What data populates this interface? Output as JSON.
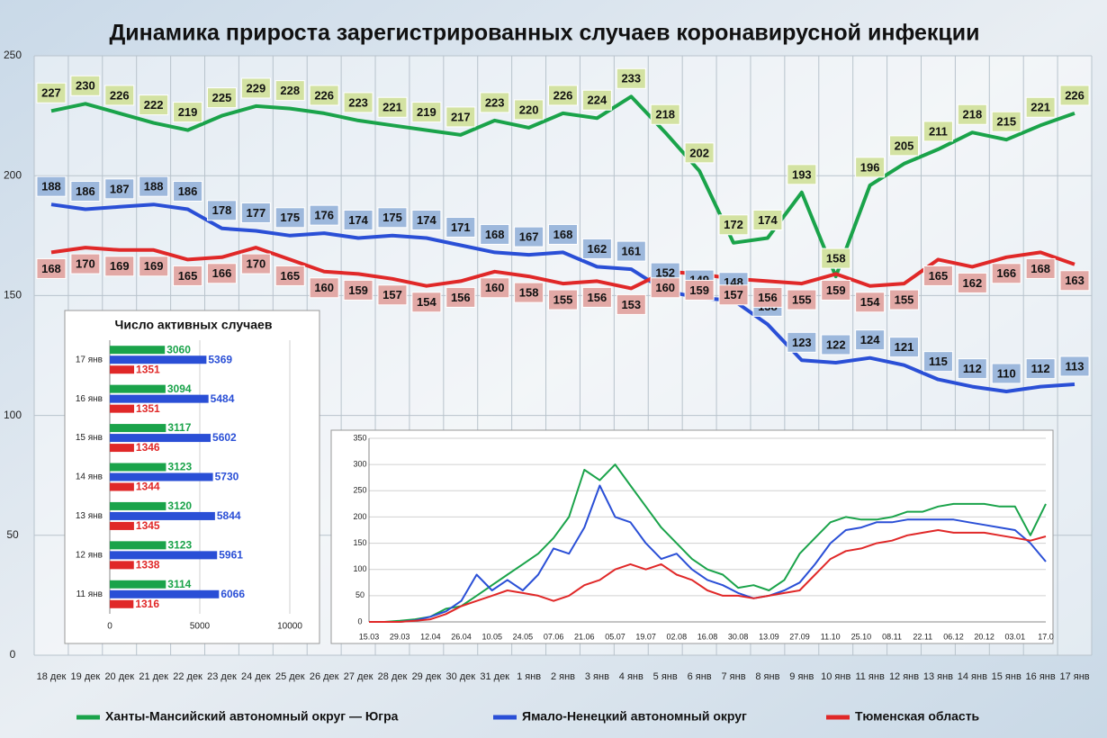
{
  "chart_data": [
    {
      "type": "line",
      "title": "Динамика прироста зарегистрированных случаев коронавирусной инфекции",
      "categories": [
        "18 дек",
        "19 дек",
        "20 дек",
        "21 дек",
        "22 дек",
        "23 дек",
        "24 дек",
        "25 дек",
        "26 дек",
        "27 дек",
        "28 дек",
        "29 дек",
        "30 дек",
        "31 дек",
        "1 янв",
        "2 янв",
        "3 янв",
        "4 янв",
        "5 янв",
        "6 янв",
        "7 янв",
        "8 янв",
        "9 янв",
        "10 янв",
        "11 янв",
        "12 янв",
        "13 янв",
        "14 янв",
        "15 янв",
        "16 янв",
        "17 янв"
      ],
      "series": [
        {
          "name": "Ханты-Мансийский автономный округ — Югра",
          "color": "#1aa34a",
          "label_color": "#d3e2a2",
          "values": [
            227,
            230,
            226,
            222,
            219,
            225,
            229,
            228,
            226,
            223,
            221,
            219,
            217,
            223,
            220,
            226,
            224,
            233,
            218,
            202,
            172,
            174,
            193,
            158,
            196,
            205,
            211,
            218,
            215,
            221,
            226
          ]
        },
        {
          "name": "Ямало-Ненецкий автономный округ",
          "color": "#2a4fd6",
          "label_color": "#9db8dc",
          "values": [
            188,
            186,
            187,
            188,
            186,
            178,
            177,
            175,
            176,
            174,
            175,
            174,
            171,
            168,
            167,
            168,
            162,
            161,
            152,
            149,
            148,
            138,
            123,
            122,
            124,
            121,
            115,
            112,
            110,
            112,
            113
          ]
        },
        {
          "name": "Тюменская область",
          "color": "#e02828",
          "label_color": "#e2a9a6",
          "values": [
            168,
            170,
            169,
            169,
            165,
            166,
            170,
            165,
            160,
            159,
            157,
            154,
            156,
            160,
            158,
            155,
            156,
            153,
            160,
            159,
            157,
            156,
            155,
            159,
            154,
            155,
            165,
            162,
            166,
            168,
            163
          ]
        }
      ],
      "ylim": [
        0,
        250
      ],
      "yticks": [
        0,
        50,
        100,
        150,
        200,
        250
      ],
      "grid": true
    },
    {
      "type": "barh",
      "title": "Число активных случаев",
      "categories": [
        "17 янв",
        "16 янв",
        "15 янв",
        "14 янв",
        "13 янв",
        "12 янв",
        "11 янв"
      ],
      "series": [
        {
          "color": "#1aa34a",
          "values": [
            3060,
            3094,
            3117,
            3123,
            3120,
            3123,
            3114
          ]
        },
        {
          "color": "#2a4fd6",
          "values": [
            5369,
            5484,
            5602,
            5730,
            5844,
            5961,
            6066
          ]
        },
        {
          "color": "#e02828",
          "values": [
            1351,
            1351,
            1346,
            1344,
            1345,
            1338,
            1316
          ]
        }
      ],
      "xlim": [
        0,
        10000
      ],
      "xticks": [
        0,
        5000,
        10000
      ],
      "grid": true
    },
    {
      "type": "line",
      "categories": [
        "15.03",
        null,
        "29.03",
        null,
        "12.04",
        null,
        "26.04",
        null,
        "10.05",
        null,
        "24.05",
        null,
        "07.06",
        null,
        "21.06",
        null,
        "05.07",
        null,
        "19.07",
        null,
        "02.08",
        null,
        "16.08",
        null,
        "30.08",
        null,
        "13.09",
        null,
        "27.09",
        null,
        "11.10",
        null,
        "25.10",
        null,
        "08.11",
        null,
        "22.11",
        null,
        "06.12",
        null,
        "20.12",
        null,
        "03.01",
        null,
        "17.0"
      ],
      "series": [
        {
          "color": "#1aa34a",
          "values": [
            0,
            0,
            2,
            5,
            10,
            25,
            30,
            50,
            70,
            90,
            110,
            130,
            160,
            200,
            290,
            270,
            300,
            260,
            220,
            180,
            150,
            120,
            100,
            90,
            65,
            70,
            60,
            80,
            130,
            160,
            190,
            200,
            195,
            195,
            200,
            210,
            210,
            220,
            225,
            225,
            225,
            220,
            220,
            165,
            225
          ]
        },
        {
          "color": "#2a4fd6",
          "values": [
            0,
            0,
            0,
            3,
            10,
            20,
            40,
            90,
            60,
            80,
            60,
            90,
            140,
            130,
            180,
            260,
            200,
            190,
            150,
            120,
            130,
            100,
            80,
            70,
            55,
            45,
            50,
            60,
            75,
            110,
            150,
            175,
            180,
            190,
            190,
            195,
            195,
            195,
            195,
            190,
            185,
            180,
            175,
            150,
            115
          ]
        },
        {
          "color": "#e02828",
          "values": [
            0,
            0,
            0,
            2,
            5,
            15,
            30,
            40,
            50,
            60,
            55,
            50,
            40,
            50,
            70,
            80,
            100,
            110,
            100,
            110,
            90,
            80,
            60,
            50,
            50,
            45,
            50,
            55,
            60,
            90,
            120,
            135,
            140,
            150,
            155,
            165,
            170,
            175,
            170,
            170,
            170,
            165,
            160,
            155,
            163
          ]
        }
      ],
      "ylim": [
        0,
        350
      ],
      "yticks": [
        0,
        50,
        100,
        150,
        200,
        250,
        300,
        350
      ],
      "grid": true
    }
  ]
}
